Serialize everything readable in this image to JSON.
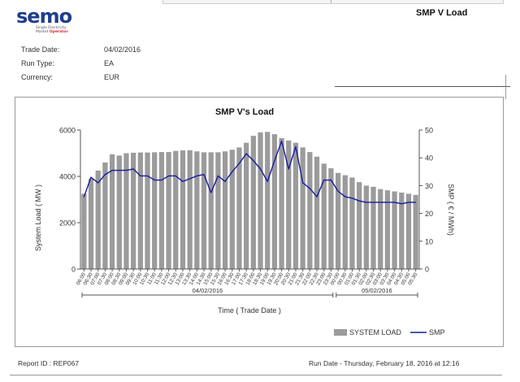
{
  "header": {
    "logo_text": "semo",
    "logo_sub_line1": "Single Electricity",
    "logo_sub_line2a": "Market ",
    "logo_sub_line2b": "Operator",
    "report_title": "SMP V Load"
  },
  "meta": {
    "trade_date_label": "Trade Date:",
    "trade_date_value": "04/02/2016",
    "run_type_label": "Run Type:",
    "run_type_value": "EA",
    "currency_label": "Currency:",
    "currency_value": "EUR"
  },
  "footer": {
    "report_id": "Report ID : REP067",
    "run_date": "Run Date - Thursday, February 18, 2016 at 12:16"
  },
  "colors": {
    "bar": "#9b9b9b",
    "line": "#1a1aa0",
    "logo_blue": "#1f3e8c",
    "logo_red": "#d8232a"
  },
  "chart_data": {
    "type": "bar+line",
    "title": "SMP V's Load",
    "xlabel": "Time ( Trade Date )",
    "ylabel_left": "System Load ( MW )",
    "ylabel_right": "SMP ( € / MWh)",
    "ylim_left": [
      0,
      6000
    ],
    "ylim_right": [
      0,
      50
    ],
    "yticks_left": [
      "0",
      "2000",
      "4000",
      "6000"
    ],
    "yticks_right": [
      "0",
      "10",
      "20",
      "30",
      "40",
      "50"
    ],
    "categories": [
      "06:00",
      "06:30",
      "07:00",
      "07:30",
      "08:00",
      "08:30",
      "09:00",
      "09:30",
      "10:00",
      "10:30",
      "11:00",
      "11:30",
      "12:00",
      "12:30",
      "13:00",
      "13:30",
      "14:00",
      "14:30",
      "15:00",
      "15:30",
      "16:00",
      "16:30",
      "17:00",
      "17:30",
      "18:00",
      "18:30",
      "19:00",
      "19:30",
      "20:00",
      "20:30",
      "21:00",
      "21:30",
      "22:00",
      "22:30",
      "23:00",
      "23:30",
      "00:00",
      "00:30",
      "01:00",
      "01:30",
      "02:00",
      "02:30",
      "03:00",
      "03:30",
      "04:00",
      "04:30",
      "05:00",
      "05:30"
    ],
    "group_labels": [
      {
        "label": "04/02/2016",
        "from": 0,
        "to": 35
      },
      {
        "label": "05/02/2016",
        "from": 36,
        "to": 47
      }
    ],
    "series": [
      {
        "name": "SYSTEM LOAD",
        "kind": "bar",
        "values": [
          3250,
          3900,
          4250,
          4600,
          4950,
          4900,
          5000,
          5020,
          5030,
          5030,
          5040,
          5050,
          5050,
          5100,
          5120,
          5130,
          5080,
          5040,
          5040,
          5040,
          5080,
          5150,
          5250,
          5450,
          5750,
          5900,
          5920,
          5820,
          5650,
          5550,
          5450,
          5250,
          5050,
          4850,
          4550,
          4350,
          4150,
          4050,
          3950,
          3750,
          3600,
          3550,
          3450,
          3400,
          3350,
          3300,
          3250,
          3200
        ]
      },
      {
        "name": "SMP",
        "kind": "line",
        "values": [
          26,
          33,
          31,
          34,
          35.5,
          35.5,
          35.5,
          36,
          33.5,
          33.5,
          32,
          32,
          33.5,
          33.5,
          31.5,
          32.5,
          33.5,
          34,
          27.5,
          33.5,
          31.5,
          35,
          38,
          41.5,
          39,
          36,
          31.5,
          39,
          46,
          36,
          44,
          31,
          29,
          26,
          32,
          32,
          28,
          26,
          25.5,
          24.5,
          24,
          24,
          24,
          24,
          24,
          23.5,
          24,
          24
        ]
      }
    ],
    "legend": [
      "SYSTEM LOAD",
      "SMP"
    ]
  }
}
